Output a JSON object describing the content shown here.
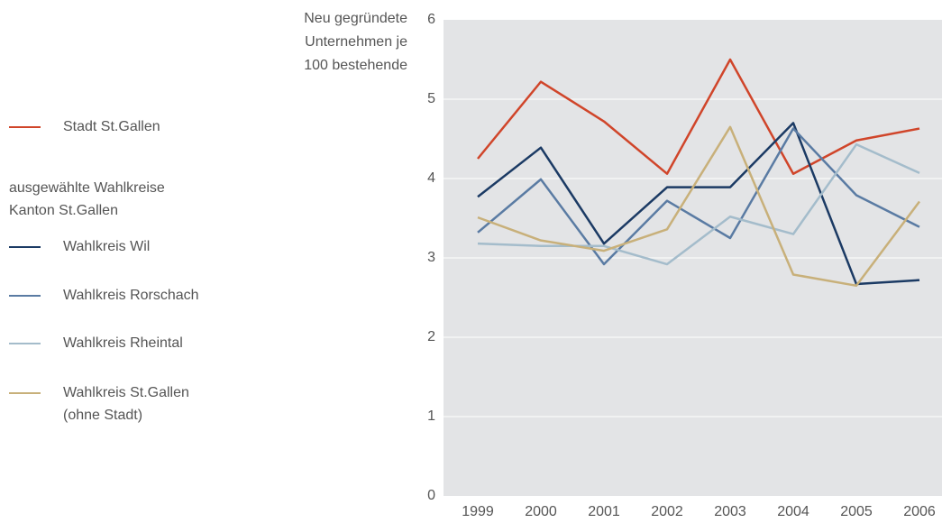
{
  "chart_data": {
    "type": "line",
    "y_label": "Neu gegründete Unternehmen je 100 bestehende",
    "legend_title": "ausgewählte Wahlkreise Kanton St.Gallen",
    "categories": [
      "1999",
      "2000",
      "2001",
      "2002",
      "2003",
      "2004",
      "2005",
      "2006"
    ],
    "series": [
      {
        "name": "Stadt St.Gallen",
        "color": "#d0452a",
        "values": [
          4.25,
          5.22,
          4.72,
          4.06,
          5.5,
          4.06,
          4.48,
          4.63
        ]
      },
      {
        "name": "Wahlkreis Wil",
        "color": "#1b3a64",
        "values": [
          3.77,
          4.39,
          3.18,
          3.89,
          3.89,
          4.7,
          2.67,
          2.72
        ]
      },
      {
        "name": "Wahlkreis Rorschach",
        "color": "#5a7ba3",
        "values": [
          3.32,
          3.99,
          2.92,
          3.72,
          3.25,
          4.63,
          3.79,
          3.39
        ]
      },
      {
        "name": "Wahlkreis Rheintal",
        "color": "#a4bccb",
        "values": [
          3.18,
          3.15,
          3.15,
          2.92,
          3.52,
          3.3,
          4.43,
          4.07
        ]
      },
      {
        "name": "Wahlkreis St.Gallen (ohne Stadt)",
        "color": "#c8b07a",
        "values": [
          3.51,
          3.22,
          3.09,
          3.36,
          4.65,
          2.79,
          2.65,
          3.71
        ]
      }
    ],
    "ylim": [
      0,
      6
    ],
    "yticks": [
      0,
      1,
      2,
      3,
      4,
      5,
      6
    ],
    "grid": true,
    "legend": "left"
  }
}
